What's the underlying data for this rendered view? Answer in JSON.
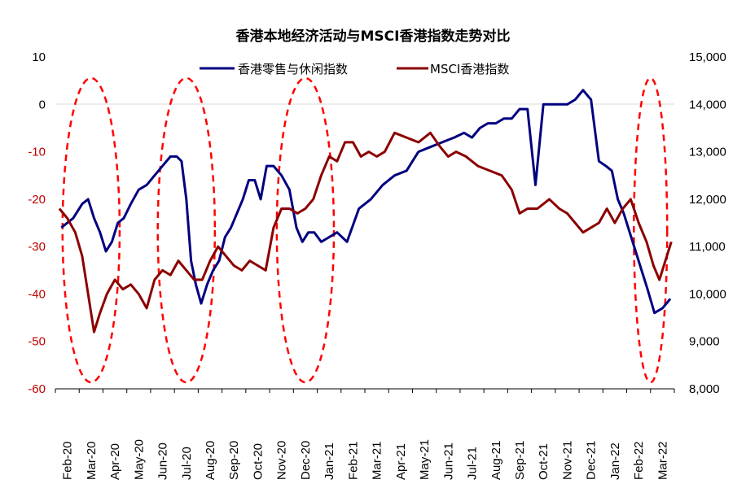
{
  "chart_data": {
    "type": "line",
    "title": "香港本地经济活动与MSCI香港指数走势对比",
    "x": [
      "Feb-20",
      "Mar-20",
      "Apr-20",
      "May-20",
      "Jun-20",
      "Jul-20",
      "Aug-20",
      "Sep-20",
      "Oct-20",
      "Nov-20",
      "Dec-20",
      "Jan-21",
      "Feb-21",
      "Mar-21",
      "Apr-21",
      "May-21",
      "Jun-21",
      "Jul-21",
      "Aug-21",
      "Sep-21",
      "Oct-21",
      "Nov-21",
      "Dec-21",
      "Jan-22",
      "Feb-22",
      "Mar-22"
    ],
    "left_axis": {
      "ticks": [
        10,
        0,
        -10,
        -20,
        -30,
        -40,
        -50,
        -60
      ],
      "ylim": [
        -60,
        10
      ],
      "tick_color": "#C00000"
    },
    "right_axis": {
      "ticks": [
        "15,000",
        "14,000",
        "13,000",
        "12,000",
        "11,000",
        "10,000",
        "9,000",
        "8,000"
      ],
      "ylim": [
        8000,
        15000
      ]
    },
    "grid": false,
    "legend_position": "top-center",
    "series": [
      {
        "name": "香港零售与休闲指数",
        "color": "#000080",
        "axis": "left",
        "points": [
          [
            "Feb-20",
            -26
          ],
          [
            "Feb-20",
            -24
          ],
          [
            "Mar-20",
            -21
          ],
          [
            "Mar-20",
            -20
          ],
          [
            "Mar-20",
            -24
          ],
          [
            "Mar-20",
            -27
          ],
          [
            "Apr-20",
            -31
          ],
          [
            "Apr-20",
            -29
          ],
          [
            "Apr-20",
            -25
          ],
          [
            "Apr-20",
            -24
          ],
          [
            "May-20",
            -21
          ],
          [
            "May-20",
            -18
          ],
          [
            "May-20",
            -17
          ],
          [
            "Jun-20",
            -15
          ],
          [
            "Jun-20",
            -13
          ],
          [
            "Jun-20",
            -11
          ],
          [
            "Jul-20",
            -11
          ],
          [
            "Jul-20",
            -12
          ],
          [
            "Jul-20",
            -20
          ],
          [
            "Jul-20",
            -33
          ],
          [
            "Jul-20",
            -38
          ],
          [
            "Aug-20",
            -42
          ],
          [
            "Aug-20",
            -38
          ],
          [
            "Aug-20",
            -35
          ],
          [
            "Aug-20",
            -33
          ],
          [
            "Sep-20",
            -28
          ],
          [
            "Sep-20",
            -26
          ],
          [
            "Sep-20",
            -23
          ],
          [
            "Sep-20",
            -20
          ],
          [
            "Oct-20",
            -16
          ],
          [
            "Oct-20",
            -16
          ],
          [
            "Oct-20",
            -20
          ],
          [
            "Oct-20",
            -13
          ],
          [
            "Nov-20",
            -13
          ],
          [
            "Nov-20",
            -15
          ],
          [
            "Nov-20",
            -18
          ],
          [
            "Dec-20",
            -26
          ],
          [
            "Dec-20",
            -29
          ],
          [
            "Dec-20",
            -27
          ],
          [
            "Dec-20",
            -27
          ],
          [
            "Jan-21",
            -29
          ],
          [
            "Jan-21",
            -28
          ],
          [
            "Jan-21",
            -27
          ],
          [
            "Feb-21",
            -29
          ],
          [
            "Feb-21",
            -22
          ],
          [
            "Mar-21",
            -20
          ],
          [
            "Mar-21",
            -17
          ],
          [
            "Apr-21",
            -15
          ],
          [
            "Apr-21",
            -14
          ],
          [
            "May-21",
            -10
          ],
          [
            "May-21",
            -9
          ],
          [
            "Jun-21",
            -8
          ],
          [
            "Jun-21",
            -7
          ],
          [
            "Jul-21",
            -6
          ],
          [
            "Jul-21",
            -7
          ],
          [
            "Jul-21",
            -5
          ],
          [
            "Aug-21",
            -4
          ],
          [
            "Aug-21",
            -4
          ],
          [
            "Aug-21",
            -3
          ],
          [
            "Sep-21",
            -3
          ],
          [
            "Sep-21",
            -1
          ],
          [
            "Sep-21",
            -1
          ],
          [
            "Oct-21",
            -17
          ],
          [
            "Oct-21",
            0
          ],
          [
            "Oct-21",
            0
          ],
          [
            "Nov-21",
            0
          ],
          [
            "Nov-21",
            0
          ],
          [
            "Nov-21",
            1
          ],
          [
            "Dec-21",
            3
          ],
          [
            "Dec-21",
            1
          ],
          [
            "Dec-21",
            -12
          ],
          [
            "Jan-22",
            -13
          ],
          [
            "Jan-22",
            -14
          ],
          [
            "Jan-22",
            -20
          ],
          [
            "Jan-22",
            -23
          ],
          [
            "Feb-22",
            -27
          ],
          [
            "Feb-22",
            -31
          ],
          [
            "Feb-22",
            -35
          ],
          [
            "Feb-22",
            -39
          ],
          [
            "Mar-22",
            -44
          ],
          [
            "Mar-22",
            -43
          ],
          [
            "Mar-22",
            -41
          ]
        ]
      },
      {
        "name": "MSCI香港指数",
        "color": "#8B0000",
        "axis": "right",
        "points": [
          [
            "Feb-20",
            11800
          ],
          [
            "Feb-20",
            11600
          ],
          [
            "Feb-20",
            11300
          ],
          [
            "Mar-20",
            10800
          ],
          [
            "Mar-20",
            10000
          ],
          [
            "Mar-20",
            9200
          ],
          [
            "Mar-20",
            9600
          ],
          [
            "Apr-20",
            10000
          ],
          [
            "Apr-20",
            10300
          ],
          [
            "Apr-20",
            10100
          ],
          [
            "May-20",
            10200
          ],
          [
            "May-20",
            10000
          ],
          [
            "May-20",
            9700
          ],
          [
            "Jun-20",
            10300
          ],
          [
            "Jun-20",
            10500
          ],
          [
            "Jun-20",
            10400
          ],
          [
            "Jul-20",
            10700
          ],
          [
            "Jul-20",
            10500
          ],
          [
            "Jul-20",
            10300
          ],
          [
            "Aug-20",
            10300
          ],
          [
            "Aug-20",
            10700
          ],
          [
            "Aug-20",
            11000
          ],
          [
            "Sep-20",
            10800
          ],
          [
            "Sep-20",
            10600
          ],
          [
            "Sep-20",
            10500
          ],
          [
            "Oct-20",
            10700
          ],
          [
            "Oct-20",
            10600
          ],
          [
            "Oct-20",
            10500
          ],
          [
            "Nov-20",
            11400
          ],
          [
            "Nov-20",
            11800
          ],
          [
            "Nov-20",
            11800
          ],
          [
            "Dec-20",
            11700
          ],
          [
            "Dec-20",
            11800
          ],
          [
            "Dec-20",
            12000
          ],
          [
            "Jan-21",
            12500
          ],
          [
            "Jan-21",
            12900
          ],
          [
            "Jan-21",
            12800
          ],
          [
            "Feb-21",
            13200
          ],
          [
            "Feb-21",
            13200
          ],
          [
            "Feb-21",
            12900
          ],
          [
            "Mar-21",
            13000
          ],
          [
            "Mar-21",
            12900
          ],
          [
            "Mar-21",
            13000
          ],
          [
            "Apr-21",
            13400
          ],
          [
            "Apr-21",
            13300
          ],
          [
            "May-21",
            13200
          ],
          [
            "May-21",
            13400
          ],
          [
            "Jun-21",
            13100
          ],
          [
            "Jun-21",
            12900
          ],
          [
            "Jun-21",
            13000
          ],
          [
            "Jul-21",
            12900
          ],
          [
            "Jul-21",
            12700
          ],
          [
            "Aug-21",
            12600
          ],
          [
            "Aug-21",
            12500
          ],
          [
            "Sep-21",
            12200
          ],
          [
            "Sep-21",
            11700
          ],
          [
            "Sep-21",
            11800
          ],
          [
            "Oct-21",
            11800
          ],
          [
            "Oct-21",
            12000
          ],
          [
            "Nov-21",
            11800
          ],
          [
            "Nov-21",
            11700
          ],
          [
            "Nov-21",
            11500
          ],
          [
            "Dec-21",
            11300
          ],
          [
            "Dec-21",
            11400
          ],
          [
            "Dec-21",
            11500
          ],
          [
            "Jan-22",
            11800
          ],
          [
            "Jan-22",
            11500
          ],
          [
            "Jan-22",
            11800
          ],
          [
            "Feb-22",
            12000
          ],
          [
            "Feb-22",
            11500
          ],
          [
            "Feb-22",
            11100
          ],
          [
            "Mar-22",
            10600
          ],
          [
            "Mar-22",
            10300
          ],
          [
            "Mar-22",
            10700
          ],
          [
            "Mar-22",
            11100
          ]
        ]
      }
    ],
    "annotations": [
      {
        "type": "ellipse",
        "style": "dashed",
        "color": "#FF0000",
        "x_range": [
          "Feb-20",
          "Apr-20"
        ]
      },
      {
        "type": "ellipse",
        "style": "dashed",
        "color": "#FF0000",
        "x_range": [
          "Jun-20",
          "Aug-20"
        ]
      },
      {
        "type": "ellipse",
        "style": "dashed",
        "color": "#FF0000",
        "x_range": [
          "Nov-20",
          "Jan-21"
        ]
      },
      {
        "type": "ellipse",
        "style": "dashed",
        "color": "#FF0000",
        "x_range": [
          "Feb-22",
          "Mar-22"
        ]
      }
    ]
  }
}
